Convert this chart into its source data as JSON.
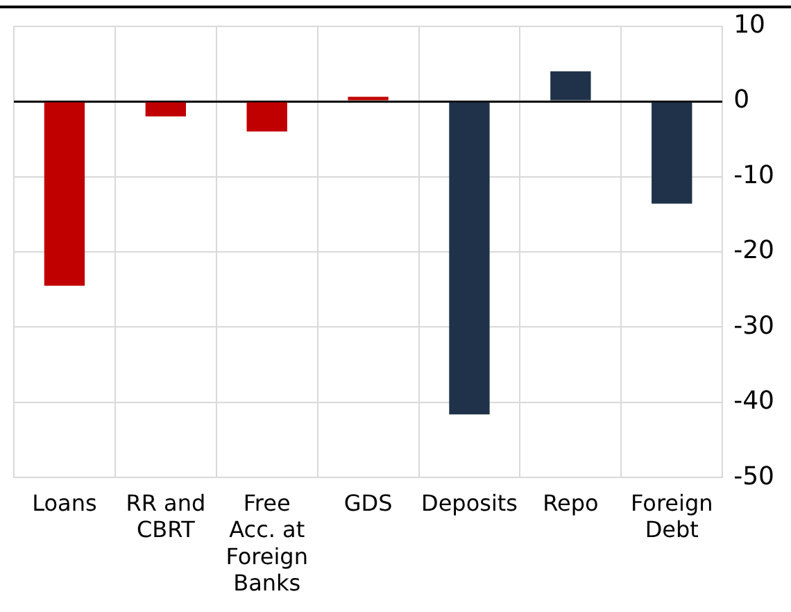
{
  "chart_data": {
    "type": "bar",
    "categories": [
      "Loans",
      "RR and CBRT",
      "Free Acc. at Foreign Banks",
      "GDS",
      "Deposits",
      "Repo",
      "Foreign Debt"
    ],
    "values": [
      -24.5,
      -2,
      -4,
      0.6,
      -41.6,
      4,
      -13.6
    ],
    "colors": [
      "#c00000",
      "#c00000",
      "#c00000",
      "#c00000",
      "#1f3249",
      "#1f3249",
      "#1f3249"
    ],
    "ylim": [
      -50,
      10
    ],
    "yticks": [
      -50,
      -40,
      -30,
      -20,
      -10,
      0,
      10
    ],
    "grid": true
  }
}
